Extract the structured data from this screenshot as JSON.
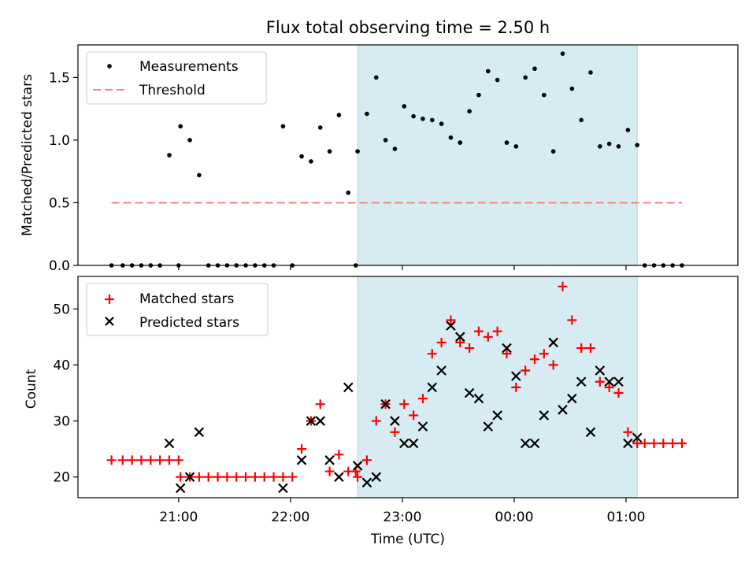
{
  "title": "Flux total observing time = 2.50 h",
  "x_axis": {
    "label": "Time (UTC)",
    "tick_labels": [
      "21:00",
      "22:00",
      "23:00",
      "00:00",
      "01:00"
    ],
    "range": [
      "20:06",
      "02:00"
    ]
  },
  "colors": {
    "measurements": "#000000",
    "threshold": "#ff7f7f",
    "matched": "#ff0000",
    "predicted": "#000000",
    "window": "#add8e6"
  },
  "observing_window": {
    "start": "22:36",
    "end": "01:06"
  },
  "chart_data": [
    {
      "type": "scatter",
      "ylabel": "Matched/Predicted stars",
      "ylim": [
        0,
        1.76
      ],
      "yticks": [
        "0.0",
        "0.5",
        "1.0",
        "1.5"
      ],
      "legend": {
        "placement": "top-left",
        "entries": [
          "Measurements",
          "Threshold"
        ]
      },
      "threshold": {
        "name": "Threshold",
        "value": 0.5,
        "x_start": "20:24",
        "x_end": "01:30"
      },
      "series": [
        {
          "name": "Measurements",
          "points": [
            [
              "20:24",
              0.0
            ],
            [
              "20:30",
              0.0
            ],
            [
              "20:35",
              0.0
            ],
            [
              "20:40",
              0.0
            ],
            [
              "20:45",
              0.0
            ],
            [
              "20:50",
              0.0
            ],
            [
              "20:55",
              0.88
            ],
            [
              "21:00",
              0.0
            ],
            [
              "21:01",
              1.11
            ],
            [
              "21:06",
              1.0
            ],
            [
              "21:11",
              0.72
            ],
            [
              "21:16",
              0.0
            ],
            [
              "21:21",
              0.0
            ],
            [
              "21:26",
              0.0
            ],
            [
              "21:31",
              0.0
            ],
            [
              "21:36",
              0.0
            ],
            [
              "21:41",
              0.0
            ],
            [
              "21:46",
              0.0
            ],
            [
              "21:51",
              0.0
            ],
            [
              "21:56",
              1.11
            ],
            [
              "22:01",
              0.0
            ],
            [
              "22:06",
              0.87
            ],
            [
              "22:11",
              0.83
            ],
            [
              "22:16",
              1.1
            ],
            [
              "22:21",
              0.91
            ],
            [
              "22:26",
              1.2
            ],
            [
              "22:31",
              0.58
            ],
            [
              "22:35",
              0.0
            ],
            [
              "22:36",
              0.91
            ],
            [
              "22:41",
              1.21
            ],
            [
              "22:46",
              1.5
            ],
            [
              "22:51",
              1.0
            ],
            [
              "22:56",
              0.93
            ],
            [
              "23:01",
              1.27
            ],
            [
              "23:06",
              1.19
            ],
            [
              "23:11",
              1.17
            ],
            [
              "23:16",
              1.16
            ],
            [
              "23:21",
              1.13
            ],
            [
              "23:26",
              1.02
            ],
            [
              "23:31",
              0.98
            ],
            [
              "23:36",
              1.23
            ],
            [
              "23:41",
              1.36
            ],
            [
              "23:46",
              1.55
            ],
            [
              "23:51",
              1.48
            ],
            [
              "23:56",
              0.98
            ],
            [
              "00:01",
              0.95
            ],
            [
              "00:06",
              1.5
            ],
            [
              "00:11",
              1.57
            ],
            [
              "00:16",
              1.36
            ],
            [
              "00:21",
              0.91
            ],
            [
              "00:26",
              1.69
            ],
            [
              "00:31",
              1.41
            ],
            [
              "00:36",
              1.16
            ],
            [
              "00:41",
              1.54
            ],
            [
              "00:46",
              0.95
            ],
            [
              "00:51",
              0.97
            ],
            [
              "00:56",
              0.95
            ],
            [
              "01:01",
              1.08
            ],
            [
              "01:06",
              0.96
            ],
            [
              "01:10",
              0.0
            ],
            [
              "01:15",
              0.0
            ],
            [
              "01:20",
              0.0
            ],
            [
              "01:25",
              0.0
            ],
            [
              "01:30",
              0.0
            ]
          ]
        }
      ]
    },
    {
      "type": "scatter",
      "ylabel": "Count",
      "xlabel": "Time (UTC)",
      "ylim": [
        16.3,
        55.8
      ],
      "yticks": [
        "20",
        "30",
        "40",
        "50"
      ],
      "legend": {
        "placement": "top-left",
        "entries": [
          "Matched stars",
          "Predicted stars"
        ]
      },
      "series": [
        {
          "name": "Matched stars",
          "marker": "plus",
          "points": [
            [
              "20:24",
              23
            ],
            [
              "20:30",
              23
            ],
            [
              "20:35",
              23
            ],
            [
              "20:40",
              23
            ],
            [
              "20:45",
              23
            ],
            [
              "20:50",
              23
            ],
            [
              "20:55",
              23
            ],
            [
              "21:00",
              23
            ],
            [
              "21:01",
              20
            ],
            [
              "21:06",
              20
            ],
            [
              "21:11",
              20
            ],
            [
              "21:16",
              20
            ],
            [
              "21:21",
              20
            ],
            [
              "21:26",
              20
            ],
            [
              "21:31",
              20
            ],
            [
              "21:36",
              20
            ],
            [
              "21:41",
              20
            ],
            [
              "21:46",
              20
            ],
            [
              "21:51",
              20
            ],
            [
              "21:56",
              20
            ],
            [
              "22:01",
              20
            ],
            [
              "22:06",
              25
            ],
            [
              "22:11",
              30
            ],
            [
              "22:16",
              33
            ],
            [
              "22:21",
              21
            ],
            [
              "22:26",
              24
            ],
            [
              "22:31",
              21
            ],
            [
              "22:35",
              21
            ],
            [
              "22:36",
              20
            ],
            [
              "22:41",
              23
            ],
            [
              "22:46",
              30
            ],
            [
              "22:51",
              33
            ],
            [
              "22:56",
              28
            ],
            [
              "23:01",
              33
            ],
            [
              "23:06",
              31
            ],
            [
              "23:11",
              34
            ],
            [
              "23:16",
              42
            ],
            [
              "23:21",
              44
            ],
            [
              "23:26",
              48
            ],
            [
              "23:31",
              44
            ],
            [
              "23:36",
              43
            ],
            [
              "23:41",
              46
            ],
            [
              "23:46",
              45
            ],
            [
              "23:51",
              46
            ],
            [
              "23:56",
              42
            ],
            [
              "00:01",
              36
            ],
            [
              "00:06",
              39
            ],
            [
              "00:11",
              41
            ],
            [
              "00:16",
              42
            ],
            [
              "00:21",
              40
            ],
            [
              "00:26",
              54
            ],
            [
              "00:31",
              48
            ],
            [
              "00:36",
              43
            ],
            [
              "00:41",
              43
            ],
            [
              "00:46",
              37
            ],
            [
              "00:51",
              36
            ],
            [
              "00:56",
              35
            ],
            [
              "01:01",
              28
            ],
            [
              "01:06",
              26
            ],
            [
              "01:10",
              26
            ],
            [
              "01:15",
              26
            ],
            [
              "01:20",
              26
            ],
            [
              "01:25",
              26
            ],
            [
              "01:30",
              26
            ]
          ]
        },
        {
          "name": "Predicted stars",
          "marker": "x",
          "points": [
            [
              "20:55",
              26
            ],
            [
              "21:01",
              18
            ],
            [
              "21:06",
              20
            ],
            [
              "21:11",
              28
            ],
            [
              "21:56",
              18
            ],
            [
              "22:06",
              23
            ],
            [
              "22:11",
              30
            ],
            [
              "22:16",
              30
            ],
            [
              "22:21",
              23
            ],
            [
              "22:26",
              20
            ],
            [
              "22:31",
              36
            ],
            [
              "22:36",
              22
            ],
            [
              "22:41",
              19
            ],
            [
              "22:46",
              20
            ],
            [
              "22:51",
              33
            ],
            [
              "22:56",
              30
            ],
            [
              "23:01",
              26
            ],
            [
              "23:06",
              26
            ],
            [
              "23:11",
              29
            ],
            [
              "23:16",
              36
            ],
            [
              "23:21",
              39
            ],
            [
              "23:26",
              47
            ],
            [
              "23:31",
              45
            ],
            [
              "23:36",
              35
            ],
            [
              "23:41",
              34
            ],
            [
              "23:46",
              29
            ],
            [
              "23:51",
              31
            ],
            [
              "23:56",
              43
            ],
            [
              "00:01",
              38
            ],
            [
              "00:06",
              26
            ],
            [
              "00:11",
              26
            ],
            [
              "00:16",
              31
            ],
            [
              "00:21",
              44
            ],
            [
              "00:26",
              32
            ],
            [
              "00:31",
              34
            ],
            [
              "00:36",
              37
            ],
            [
              "00:41",
              28
            ],
            [
              "00:46",
              39
            ],
            [
              "00:51",
              37
            ],
            [
              "00:56",
              37
            ],
            [
              "01:01",
              26
            ],
            [
              "01:06",
              27
            ]
          ]
        }
      ]
    }
  ]
}
